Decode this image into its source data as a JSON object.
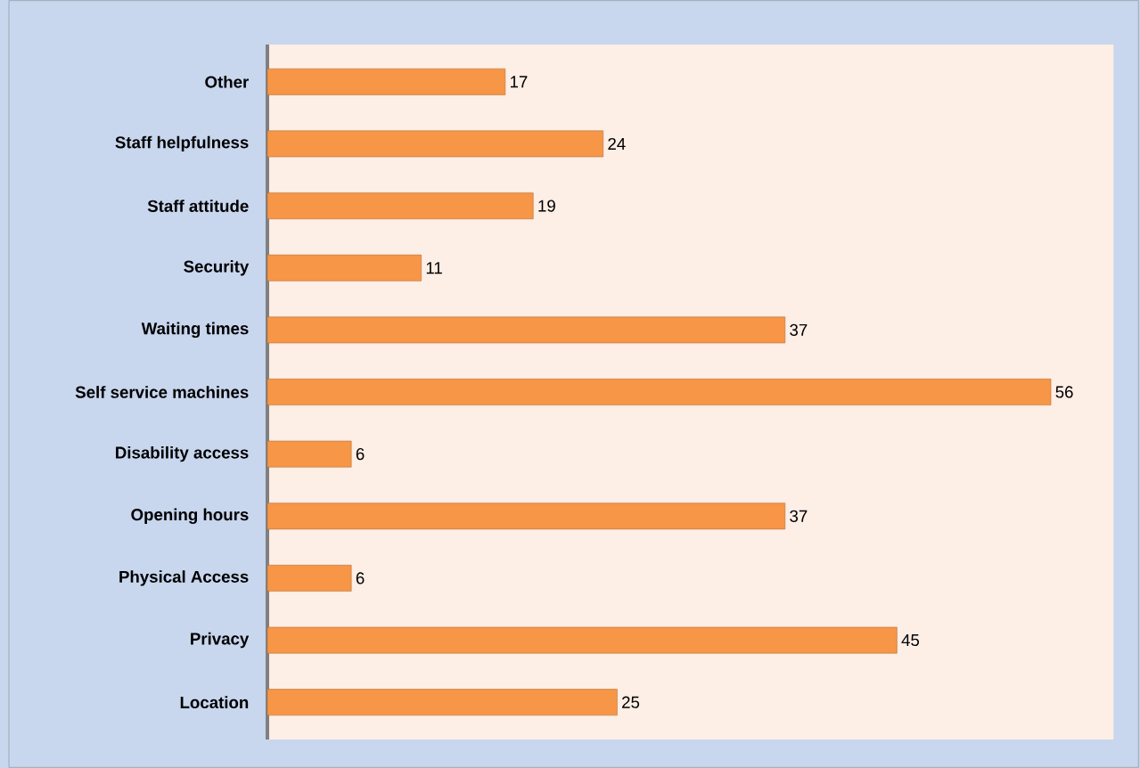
{
  "chart_data": {
    "type": "bar",
    "orientation": "horizontal",
    "categories": [
      "Other",
      "Staff helpfulness",
      "Staff attitude",
      "Security",
      "Waiting times",
      "Self service machines",
      "Disability access",
      "Opening hours",
      "Physical Access",
      "Privacy",
      "Location"
    ],
    "values": [
      17,
      24,
      19,
      11,
      37,
      56,
      6,
      37,
      6,
      45,
      25
    ],
    "color": "#f79646",
    "data_labels": true
  }
}
